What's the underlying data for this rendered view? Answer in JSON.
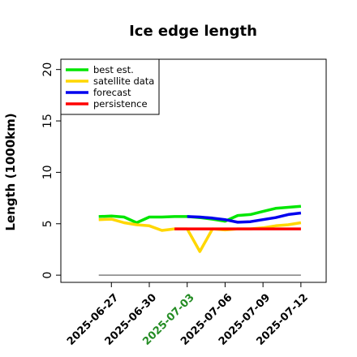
{
  "chart_data": {
    "type": "line",
    "title": "Ice edge length",
    "xlabel": "",
    "ylabel": "Length (1000km)",
    "ylim": [
      -0.7,
      21
    ],
    "xlim": [
      "2025-06-23",
      "2025-07-14"
    ],
    "y_ticks": [
      0,
      5,
      10,
      15,
      20
    ],
    "y_tick_labels": [
      "0",
      "5",
      "10",
      "15",
      "20"
    ],
    "x_ticks": [
      "2025-06-27",
      "2025-06-30",
      "2025-07-03",
      "2025-07-06",
      "2025-07-09",
      "2025-07-12"
    ],
    "x_tick_labels": [
      "2025-06-27",
      "2025-06-30",
      "2025-07-03",
      "2025-07-06",
      "2025-07-09",
      "2025-07-12"
    ],
    "highlighted_tick": "2025-07-03",
    "highlight_color": "#228b22",
    "grid": false,
    "legend_position": "top-left",
    "baseline": {
      "y": 0,
      "x_start": "2025-06-26",
      "x_end": "2025-07-12",
      "color": "#808080"
    },
    "series": [
      {
        "name": "best est.",
        "color": "#00e600",
        "x": [
          "2025-06-26",
          "2025-06-27",
          "2025-06-28",
          "2025-06-29",
          "2025-06-30",
          "2025-07-01",
          "2025-07-02",
          "2025-07-03",
          "2025-07-04",
          "2025-07-05",
          "2025-07-06",
          "2025-07-07",
          "2025-07-08",
          "2025-07-09",
          "2025-07-10",
          "2025-07-11",
          "2025-07-12"
        ],
        "y": [
          5.7,
          5.75,
          5.65,
          5.1,
          5.65,
          5.65,
          5.7,
          5.7,
          5.6,
          5.45,
          5.25,
          5.8,
          5.9,
          6.2,
          6.5,
          6.6,
          6.7
        ]
      },
      {
        "name": "satellite data",
        "color": "#ffd700",
        "x": [
          "2025-06-26",
          "2025-06-27",
          "2025-06-28",
          "2025-06-29",
          "2025-06-30",
          "2025-07-01",
          "2025-07-02",
          "2025-07-03",
          "2025-07-04",
          "2025-07-05",
          "2025-07-06",
          "2025-07-07",
          "2025-07-08",
          "2025-07-09",
          "2025-07-10",
          "2025-07-11",
          "2025-07-12"
        ],
        "y": [
          5.4,
          5.45,
          5.1,
          4.9,
          4.8,
          4.35,
          4.5,
          4.5,
          2.3,
          4.5,
          4.4,
          4.5,
          4.5,
          4.6,
          4.8,
          4.9,
          5.1
        ]
      },
      {
        "name": "forecast",
        "color": "#0000ee",
        "x": [
          "2025-07-03",
          "2025-07-04",
          "2025-07-05",
          "2025-07-06",
          "2025-07-07",
          "2025-07-08",
          "2025-07-09",
          "2025-07-10",
          "2025-07-11",
          "2025-07-12"
        ],
        "y": [
          5.7,
          5.65,
          5.55,
          5.4,
          5.15,
          5.2,
          5.4,
          5.6,
          5.9,
          6.05
        ]
      },
      {
        "name": "persistence",
        "color": "#ff0000",
        "x": [
          "2025-07-02",
          "2025-07-12"
        ],
        "y": [
          4.5,
          4.5
        ]
      }
    ]
  }
}
